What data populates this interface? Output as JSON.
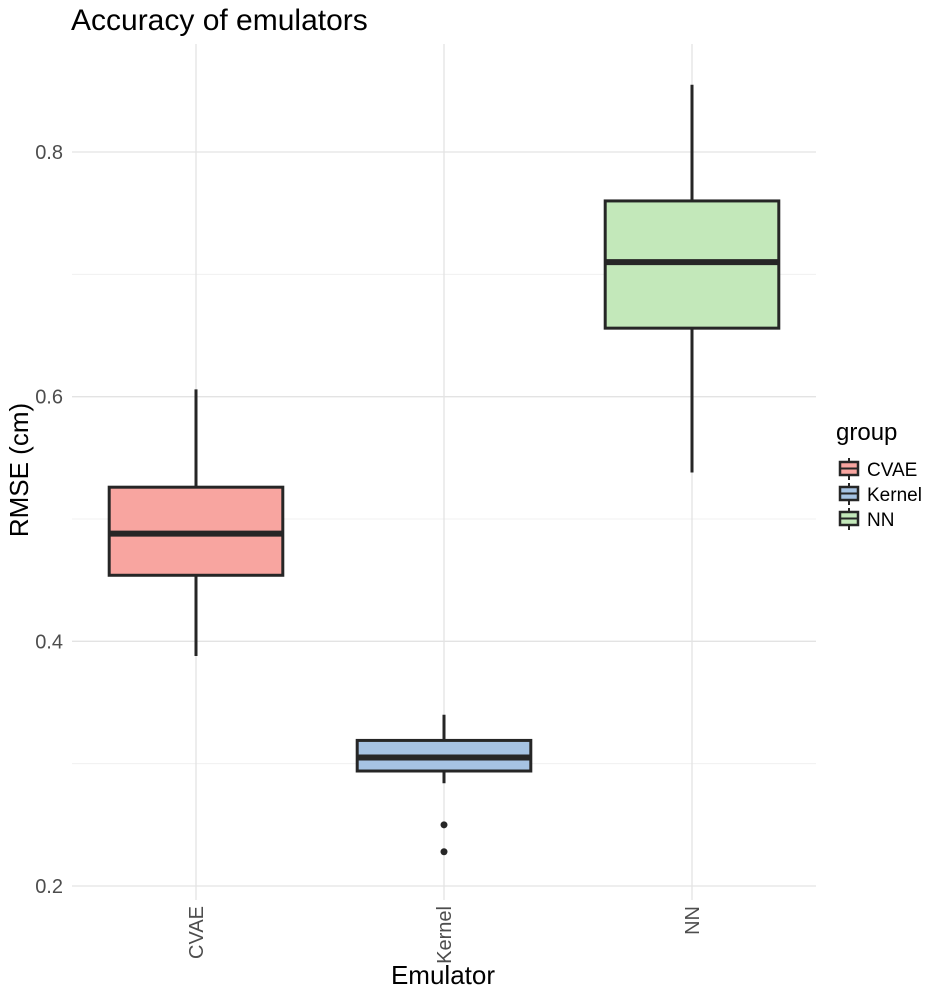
{
  "chart_data": {
    "type": "boxplot",
    "title": "Accuracy of emulators",
    "xlabel": "Emulator",
    "ylabel": "RMSE (cm)",
    "ylim": [
      0.2,
      0.86
    ],
    "yticks": [
      0.2,
      0.4,
      0.6,
      0.8
    ],
    "ytick_labels": [
      "0.2",
      "0.4",
      "0.6",
      "0.8"
    ],
    "grid": true,
    "legend": {
      "title": "group",
      "placement": "right"
    },
    "series": [
      {
        "name": "CVAE",
        "color": "#f8a5a0",
        "whisker_low": 0.388,
        "q1": 0.454,
        "median": 0.488,
        "q3": 0.526,
        "whisker_high": 0.606,
        "outliers": []
      },
      {
        "name": "Kernel",
        "color": "#a6c3e3",
        "whisker_low": 0.284,
        "q1": 0.294,
        "median": 0.305,
        "q3": 0.319,
        "whisker_high": 0.34,
        "outliers": [
          0.25,
          0.228
        ]
      },
      {
        "name": "NN",
        "color": "#c3e8ba",
        "whisker_low": 0.538,
        "q1": 0.656,
        "median": 0.71,
        "q3": 0.76,
        "whisker_high": 0.855,
        "outliers": []
      }
    ]
  }
}
